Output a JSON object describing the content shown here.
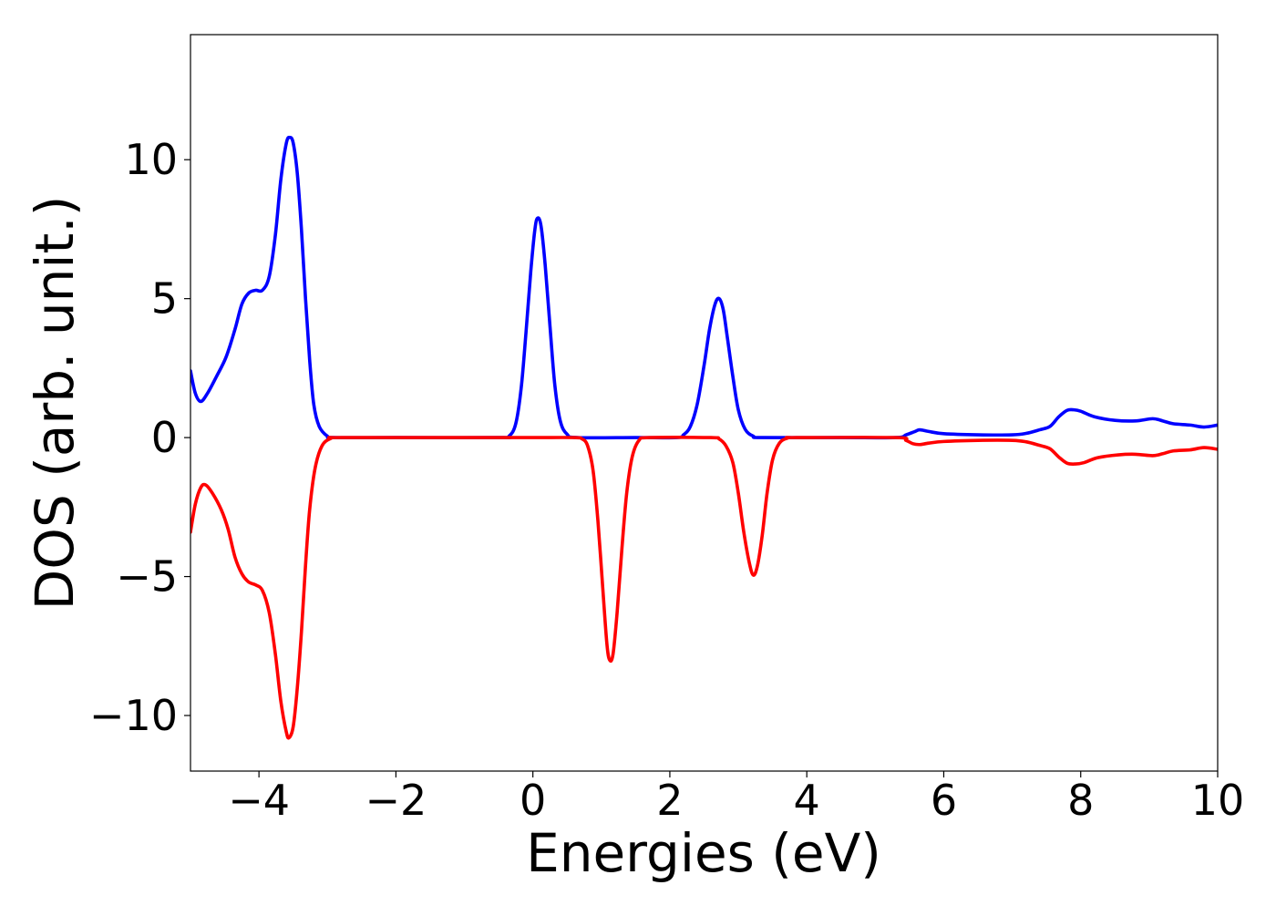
{
  "chart_data": {
    "type": "line",
    "xlabel": "Energies (eV)",
    "ylabel": "DOS (arb. unit.)",
    "xlim": [
      -5,
      10
    ],
    "ylim": [
      -12,
      14.5
    ],
    "grid": false,
    "x_ticks": [
      -4,
      -2,
      0,
      2,
      4,
      6,
      8,
      10
    ],
    "x_tick_labels": [
      "−4",
      "−2",
      "0",
      "2",
      "4",
      "6",
      "8",
      "10"
    ],
    "y_ticks": [
      -10,
      -5,
      0,
      5,
      10
    ],
    "y_tick_labels": [
      "−10",
      "−5",
      "0",
      "5",
      "10"
    ],
    "series": [
      {
        "color": "#0000ff",
        "points": [
          [
            -5.0,
            2.4
          ],
          [
            -4.93,
            1.6
          ],
          [
            -4.85,
            1.3
          ],
          [
            -4.75,
            1.6
          ],
          [
            -4.62,
            2.2
          ],
          [
            -4.48,
            2.9
          ],
          [
            -4.35,
            3.9
          ],
          [
            -4.25,
            4.8
          ],
          [
            -4.15,
            5.2
          ],
          [
            -4.05,
            5.3
          ],
          [
            -3.95,
            5.3
          ],
          [
            -3.85,
            5.8
          ],
          [
            -3.76,
            7.3
          ],
          [
            -3.68,
            9.3
          ],
          [
            -3.6,
            10.6
          ],
          [
            -3.55,
            10.8
          ],
          [
            -3.5,
            10.6
          ],
          [
            -3.44,
            9.5
          ],
          [
            -3.38,
            7.5
          ],
          [
            -3.32,
            5.0
          ],
          [
            -3.26,
            2.8
          ],
          [
            -3.2,
            1.2
          ],
          [
            -3.12,
            0.4
          ],
          [
            -3.0,
            0.05
          ],
          [
            -2.9,
            0.0
          ],
          [
            -2.0,
            0.0
          ],
          [
            -0.5,
            0.0
          ],
          [
            -0.35,
            0.05
          ],
          [
            -0.25,
            0.5
          ],
          [
            -0.17,
            1.8
          ],
          [
            -0.1,
            3.8
          ],
          [
            -0.03,
            6.0
          ],
          [
            0.03,
            7.5
          ],
          [
            0.07,
            7.9
          ],
          [
            0.12,
            7.6
          ],
          [
            0.18,
            6.2
          ],
          [
            0.25,
            4.0
          ],
          [
            0.32,
            1.9
          ],
          [
            0.4,
            0.6
          ],
          [
            0.5,
            0.12
          ],
          [
            0.65,
            0.0
          ],
          [
            1.5,
            0.0
          ],
          [
            2.1,
            0.0
          ],
          [
            2.2,
            0.1
          ],
          [
            2.3,
            0.4
          ],
          [
            2.4,
            1.2
          ],
          [
            2.5,
            2.6
          ],
          [
            2.58,
            3.9
          ],
          [
            2.66,
            4.8
          ],
          [
            2.72,
            5.0
          ],
          [
            2.78,
            4.6
          ],
          [
            2.84,
            3.6
          ],
          [
            2.92,
            2.2
          ],
          [
            3.0,
            1.0
          ],
          [
            3.1,
            0.3
          ],
          [
            3.22,
            0.05
          ],
          [
            3.35,
            0.0
          ],
          [
            4.5,
            0.0
          ],
          [
            5.3,
            0.0
          ],
          [
            5.45,
            0.1
          ],
          [
            5.58,
            0.22
          ],
          [
            5.65,
            0.28
          ],
          [
            5.78,
            0.22
          ],
          [
            6.0,
            0.14
          ],
          [
            6.5,
            0.1
          ],
          [
            7.0,
            0.1
          ],
          [
            7.2,
            0.15
          ],
          [
            7.4,
            0.28
          ],
          [
            7.55,
            0.4
          ],
          [
            7.68,
            0.75
          ],
          [
            7.8,
            0.98
          ],
          [
            7.9,
            1.0
          ],
          [
            8.0,
            0.95
          ],
          [
            8.2,
            0.75
          ],
          [
            8.5,
            0.62
          ],
          [
            8.8,
            0.6
          ],
          [
            9.05,
            0.68
          ],
          [
            9.2,
            0.6
          ],
          [
            9.35,
            0.5
          ],
          [
            9.6,
            0.45
          ],
          [
            9.8,
            0.38
          ],
          [
            10.0,
            0.45
          ]
        ]
      },
      {
        "color": "#ff0000",
        "points": [
          [
            -5.0,
            -3.4
          ],
          [
            -4.93,
            -2.4
          ],
          [
            -4.85,
            -1.8
          ],
          [
            -4.78,
            -1.7
          ],
          [
            -4.68,
            -2.0
          ],
          [
            -4.55,
            -2.6
          ],
          [
            -4.45,
            -3.3
          ],
          [
            -4.35,
            -4.3
          ],
          [
            -4.25,
            -4.9
          ],
          [
            -4.15,
            -5.2
          ],
          [
            -4.05,
            -5.3
          ],
          [
            -3.95,
            -5.5
          ],
          [
            -3.85,
            -6.3
          ],
          [
            -3.76,
            -7.8
          ],
          [
            -3.68,
            -9.5
          ],
          [
            -3.6,
            -10.6
          ],
          [
            -3.56,
            -10.8
          ],
          [
            -3.5,
            -10.4
          ],
          [
            -3.44,
            -9.0
          ],
          [
            -3.38,
            -7.0
          ],
          [
            -3.32,
            -4.6
          ],
          [
            -3.26,
            -2.6
          ],
          [
            -3.18,
            -1.1
          ],
          [
            -3.08,
            -0.3
          ],
          [
            -2.95,
            -0.03
          ],
          [
            -2.8,
            0.0
          ],
          [
            -1.0,
            0.0
          ],
          [
            0.0,
            0.0
          ],
          [
            0.6,
            0.0
          ],
          [
            0.72,
            -0.05
          ],
          [
            0.8,
            -0.3
          ],
          [
            0.88,
            -1.2
          ],
          [
            0.95,
            -3.0
          ],
          [
            1.02,
            -5.4
          ],
          [
            1.08,
            -7.4
          ],
          [
            1.12,
            -8.0
          ],
          [
            1.17,
            -7.8
          ],
          [
            1.23,
            -6.3
          ],
          [
            1.3,
            -4.0
          ],
          [
            1.37,
            -2.0
          ],
          [
            1.45,
            -0.7
          ],
          [
            1.55,
            -0.1
          ],
          [
            1.7,
            0.0
          ],
          [
            2.6,
            0.0
          ],
          [
            2.72,
            -0.05
          ],
          [
            2.82,
            -0.3
          ],
          [
            2.92,
            -0.9
          ],
          [
            3.0,
            -2.0
          ],
          [
            3.08,
            -3.4
          ],
          [
            3.16,
            -4.5
          ],
          [
            3.22,
            -4.95
          ],
          [
            3.28,
            -4.6
          ],
          [
            3.35,
            -3.5
          ],
          [
            3.42,
            -2.0
          ],
          [
            3.5,
            -0.8
          ],
          [
            3.6,
            -0.2
          ],
          [
            3.72,
            -0.02
          ],
          [
            3.85,
            0.0
          ],
          [
            5.3,
            0.0
          ],
          [
            5.45,
            -0.1
          ],
          [
            5.55,
            -0.22
          ],
          [
            5.65,
            -0.25
          ],
          [
            5.78,
            -0.2
          ],
          [
            6.0,
            -0.14
          ],
          [
            6.5,
            -0.1
          ],
          [
            7.0,
            -0.1
          ],
          [
            7.2,
            -0.15
          ],
          [
            7.4,
            -0.28
          ],
          [
            7.55,
            -0.4
          ],
          [
            7.68,
            -0.7
          ],
          [
            7.8,
            -0.92
          ],
          [
            7.92,
            -0.95
          ],
          [
            8.05,
            -0.9
          ],
          [
            8.25,
            -0.72
          ],
          [
            8.55,
            -0.62
          ],
          [
            8.8,
            -0.6
          ],
          [
            9.05,
            -0.65
          ],
          [
            9.2,
            -0.58
          ],
          [
            9.35,
            -0.48
          ],
          [
            9.6,
            -0.44
          ],
          [
            9.8,
            -0.36
          ],
          [
            10.0,
            -0.42
          ]
        ]
      }
    ]
  }
}
